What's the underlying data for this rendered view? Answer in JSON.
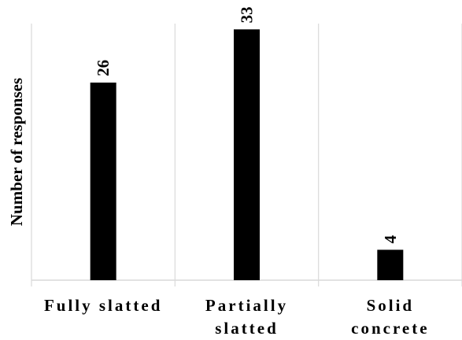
{
  "chart_data": {
    "type": "bar",
    "categories": [
      [
        "Fully slatted"
      ],
      [
        "Partially",
        "slatted"
      ],
      [
        "Solid",
        "concrete"
      ]
    ],
    "values": [
      26,
      33,
      4
    ],
    "data_labels": [
      "26",
      "33",
      "4"
    ],
    "title": "",
    "xlabel": "",
    "ylabel": "Number of responses",
    "ylim": [
      0,
      35
    ],
    "grid": "vertical separators between categories",
    "legend": "none",
    "colors": {
      "bar": "#000000",
      "gridline": "#d9d9d9",
      "axis": "#d9d9d9",
      "text": "#000000"
    }
  }
}
